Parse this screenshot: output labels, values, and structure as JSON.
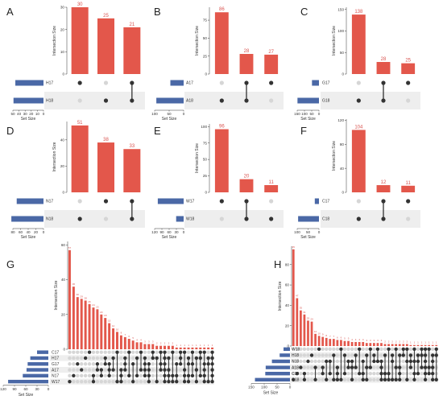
{
  "colors": {
    "bar": "#e3574b",
    "set_bar": "#4a68a6",
    "dot_on": "#333333",
    "dot_off": "#d6d6d6",
    "row_shade": "#eeeeee",
    "bar_label": "#d9534f"
  },
  "chart_data": [
    {
      "panel": "A",
      "type": "bar",
      "ylabel": "Intersection Size",
      "xlabel": "Set Size",
      "ylim": [
        0,
        30
      ],
      "yticks": [
        0,
        10,
        20,
        30
      ],
      "setsize_ticks": [
        "50",
        "40",
        "30",
        "20",
        "10",
        "0"
      ],
      "setsize_max": 50,
      "sets": [
        {
          "name": "H17",
          "size": 46
        },
        {
          "name": "H18",
          "size": 49
        }
      ],
      "values": [
        30,
        25,
        21
      ],
      "combos": [
        [
          0
        ],
        [
          1
        ],
        [
          0,
          1
        ]
      ]
    },
    {
      "panel": "B",
      "type": "bar",
      "ylabel": "Intersection Size",
      "xlabel": "Set Size",
      "ylim": [
        0,
        93
      ],
      "yticks": [
        0,
        25,
        50,
        75
      ],
      "setsize_ticks": [
        "100",
        "50",
        "0"
      ],
      "setsize_max": 120,
      "sets": [
        {
          "name": "A17",
          "size": 55
        },
        {
          "name": "A18",
          "size": 113
        }
      ],
      "values": [
        86,
        28,
        27
      ],
      "combos": [
        [
          1
        ],
        [
          0,
          1
        ],
        [
          0
        ]
      ]
    },
    {
      "panel": "C",
      "type": "bar",
      "ylabel": "Intersection Size",
      "xlabel": "Set Size",
      "ylim": [
        0,
        155
      ],
      "yticks": [
        0,
        50,
        100,
        150
      ],
      "setsize_ticks": [
        "150",
        "100",
        "50",
        "0"
      ],
      "setsize_max": 165,
      "sets": [
        {
          "name": "G17",
          "size": 53
        },
        {
          "name": "G18",
          "size": 163
        }
      ],
      "values": [
        138,
        28,
        25
      ],
      "combos": [
        [
          1
        ],
        [
          0,
          1
        ],
        [
          0
        ]
      ]
    },
    {
      "panel": "D",
      "type": "bar",
      "ylabel": "Intersection Size",
      "xlabel": "Set Size",
      "ylim": [
        0,
        54
      ],
      "yticks": [
        0,
        20,
        40
      ],
      "setsize_ticks": [
        "80",
        "60",
        "40",
        "20",
        "0"
      ],
      "setsize_max": 80,
      "sets": [
        {
          "name": "N17",
          "size": 70
        },
        {
          "name": "N18",
          "size": 84
        }
      ],
      "values": [
        51,
        38,
        33
      ],
      "combos": [
        [
          1
        ],
        [
          0
        ],
        [
          0,
          1
        ]
      ]
    },
    {
      "panel": "E",
      "type": "bar",
      "ylabel": "Intersection Size",
      "xlabel": "Set Size",
      "ylim": [
        0,
        104
      ],
      "yticks": [
        0,
        25,
        50,
        75,
        100
      ],
      "setsize_ticks": [
        "120",
        "90",
        "60",
        "30",
        "0"
      ],
      "setsize_max": 120,
      "sets": [
        {
          "name": "W17",
          "size": 107
        },
        {
          "name": "W18",
          "size": 31
        }
      ],
      "values": [
        96,
        20,
        11
      ],
      "combos": [
        [
          0
        ],
        [
          0,
          1
        ],
        [
          1
        ]
      ]
    },
    {
      "panel": "F",
      "type": "bar",
      "ylabel": "Intersection Size",
      "xlabel": "Set Size",
      "ylim": [
        0,
        122
      ],
      "yticks": [
        0,
        40,
        80,
        120
      ],
      "setsize_ticks": [
        "100",
        "50",
        "0"
      ],
      "setsize_max": 120,
      "sets": [
        {
          "name": "C17",
          "size": 23
        },
        {
          "name": "C18",
          "size": 115
        }
      ],
      "values": [
        104,
        12,
        11
      ],
      "combos": [
        [
          1
        ],
        [
          0,
          1
        ],
        [
          0
        ]
      ]
    },
    {
      "panel": "G",
      "type": "bar",
      "ylabel": "Intersection Size",
      "xlabel": "Set Size",
      "ylim": [
        0,
        62
      ],
      "yticks": [
        0,
        20,
        40,
        60
      ],
      "setsize_ticks": [
        "120",
        "90",
        "60",
        "30",
        "0"
      ],
      "setsize_max": 120,
      "sets": [
        {
          "name": "C17",
          "size": 30
        },
        {
          "name": "H17",
          "size": 48
        },
        {
          "name": "G17",
          "size": 55
        },
        {
          "name": "A17",
          "size": 58
        },
        {
          "name": "N17",
          "size": 68
        },
        {
          "name": "W17",
          "size": 107
        }
      ],
      "values": [
        57,
        36,
        30,
        29,
        28,
        26,
        24,
        23,
        20,
        18,
        15,
        12,
        10,
        8,
        7,
        6,
        5,
        4,
        4,
        3,
        3,
        3,
        2,
        2,
        2,
        2,
        2,
        1,
        1,
        1,
        1,
        1,
        1,
        1,
        1,
        1,
        1
      ],
      "combos": [
        [
          5
        ],
        [
          4
        ],
        [
          2
        ],
        [
          3
        ],
        [
          1
        ],
        [
          0
        ],
        [
          4,
          5
        ],
        [
          2,
          3
        ],
        [
          3,
          4
        ],
        [
          1,
          2
        ],
        [
          2,
          3,
          4
        ],
        [
          1,
          3
        ],
        [
          0,
          5
        ],
        [
          3,
          4,
          5
        ],
        [
          1,
          2,
          3
        ],
        [
          0,
          4
        ],
        [
          2,
          5
        ],
        [
          1,
          4
        ],
        [
          0,
          3
        ],
        [
          1,
          2,
          3,
          4
        ],
        [
          2,
          3,
          4,
          5
        ],
        [
          0,
          1
        ],
        [
          1,
          5
        ],
        [
          0,
          2,
          3
        ],
        [
          0,
          1,
          2,
          3,
          4,
          5
        ],
        [
          1,
          3,
          4,
          5
        ],
        [
          0,
          4,
          5
        ],
        [
          2,
          4,
          5
        ],
        [
          0,
          1,
          2
        ],
        [
          0,
          3,
          4,
          5
        ],
        [
          1,
          2,
          4,
          5
        ],
        [
          0,
          2,
          4
        ],
        [
          1,
          3,
          5
        ],
        [
          0,
          1,
          4
        ],
        [
          0,
          2,
          3,
          4,
          5
        ],
        [
          1,
          2,
          5
        ],
        [
          0,
          1,
          2,
          3,
          4,
          5
        ]
      ]
    },
    {
      "panel": "H",
      "type": "bar",
      "ylabel": "Intersection Size",
      "xlabel": "Set Size",
      "ylim": [
        0,
        98
      ],
      "yticks": [
        0,
        20,
        40,
        60,
        80
      ],
      "setsize_ticks": [
        "150",
        "100",
        "50",
        "0"
      ],
      "setsize_max": 180,
      "sets": [
        {
          "name": "W18",
          "size": 30
        },
        {
          "name": "H18",
          "size": 48
        },
        {
          "name": "N18",
          "size": 84
        },
        {
          "name": "A18",
          "size": 113
        },
        {
          "name": "C18",
          "size": 115
        },
        {
          "name": "G18",
          "size": 163
        }
      ],
      "values": [
        95,
        47,
        35,
        31,
        25,
        24,
        12,
        10,
        9,
        8,
        7,
        7,
        6,
        6,
        5,
        5,
        4,
        4,
        4,
        4,
        3,
        3,
        3,
        3,
        3,
        2,
        2,
        2,
        2,
        2,
        2,
        2,
        1,
        1,
        1,
        1,
        1,
        1,
        1,
        1
      ],
      "combos": [
        [
          5
        ],
        [
          4
        ],
        [
          3
        ],
        [
          5,
          4
        ],
        [
          2
        ],
        [
          1
        ],
        [
          3,
          5
        ],
        [
          0
        ],
        [
          3,
          4
        ],
        [
          2,
          5
        ],
        [
          2,
          4
        ],
        [
          1,
          5
        ],
        [
          4,
          5,
          3
        ],
        [
          0,
          5
        ],
        [
          1,
          4
        ],
        [
          2,
          3
        ],
        [
          2,
          3,
          5
        ],
        [
          1,
          3
        ],
        [
          0,
          4
        ],
        [
          2,
          4,
          5
        ],
        [
          1,
          3,
          5
        ],
        [
          0,
          3
        ],
        [
          1,
          2
        ],
        [
          0,
          2
        ],
        [
          2,
          3,
          4,
          5
        ],
        [
          1,
          4,
          5
        ],
        [
          0,
          4,
          5
        ],
        [
          1,
          2,
          5
        ],
        [
          0,
          3,
          5
        ],
        [
          1,
          3,
          4,
          5
        ],
        [
          0,
          1
        ],
        [
          0,
          2,
          5
        ],
        [
          1,
          2,
          3
        ],
        [
          0,
          2,
          4,
          5
        ],
        [
          1,
          2,
          4
        ],
        [
          0,
          1,
          3
        ],
        [
          0,
          1,
          2,
          3,
          4,
          5
        ],
        [
          0,
          3,
          4
        ],
        [
          1,
          2,
          3,
          4,
          5
        ],
        [
          0,
          1,
          5
        ]
      ]
    }
  ]
}
